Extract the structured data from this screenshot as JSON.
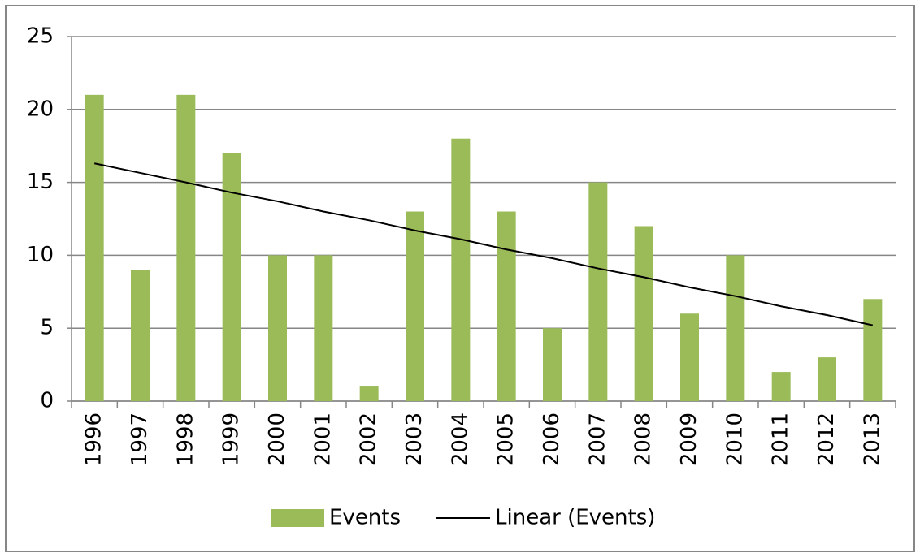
{
  "chart_data": {
    "type": "bar",
    "categories": [
      "1996",
      "1997",
      "1998",
      "1999",
      "2000",
      "2001",
      "2002",
      "2003",
      "2004",
      "2005",
      "2006",
      "2007",
      "2008",
      "2009",
      "2010",
      "2011",
      "2012",
      "2013"
    ],
    "series": [
      {
        "name": "Events",
        "type": "bar",
        "color": "#9bbb59",
        "values": [
          21,
          9,
          21,
          17,
          10,
          10,
          1,
          13,
          18,
          13,
          5,
          15,
          12,
          6,
          10,
          2,
          3,
          7
        ]
      },
      {
        "name": "Linear (Events)",
        "type": "line",
        "color": "#000000",
        "values": [
          16.3,
          15.65,
          15.0,
          14.3,
          13.7,
          13.0,
          12.4,
          11.7,
          11.1,
          10.4,
          9.8,
          9.1,
          8.5,
          7.8,
          7.2,
          6.5,
          5.9,
          5.2
        ]
      }
    ],
    "ylim": [
      0,
      25
    ],
    "yticks": [
      0,
      5,
      10,
      15,
      20,
      25
    ],
    "grid": true,
    "legend": "bottom"
  }
}
